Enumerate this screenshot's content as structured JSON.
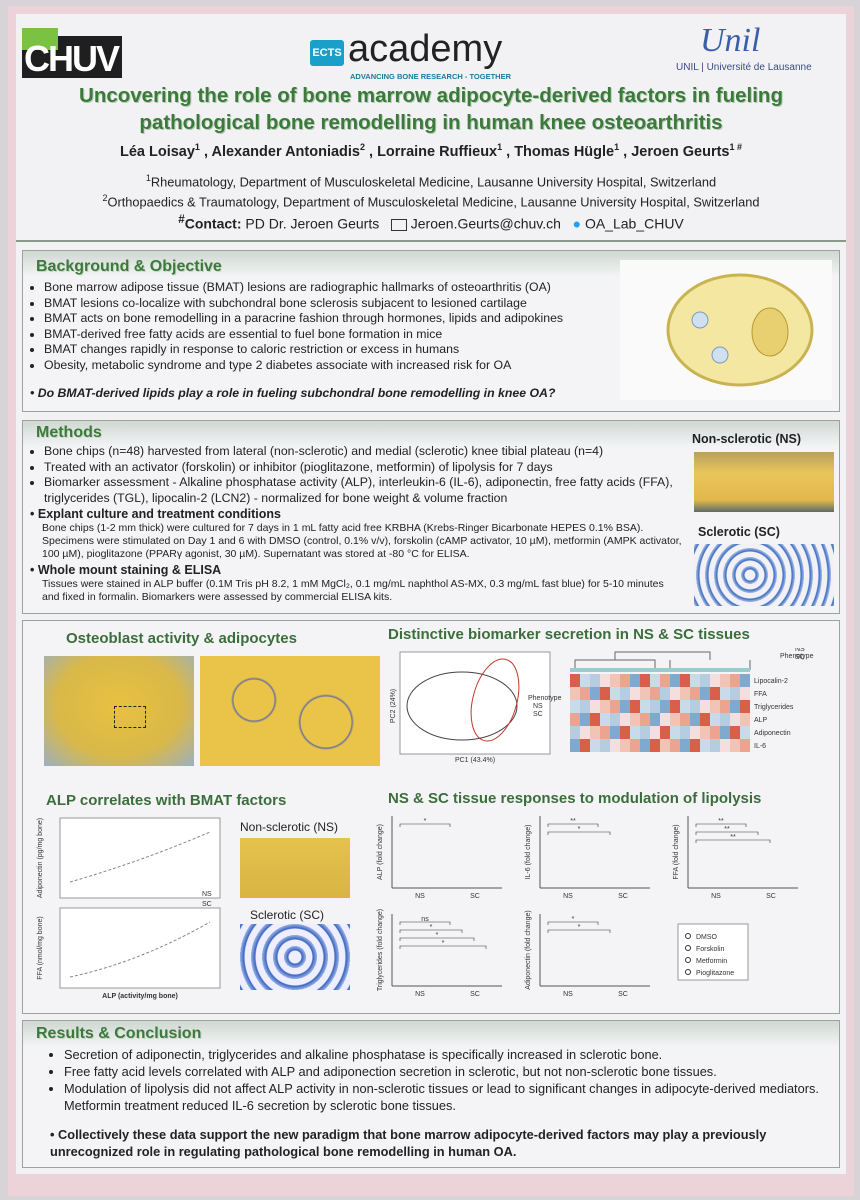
{
  "header": {
    "logo_left": "CHUV",
    "logo_center_badge": "ECTS",
    "logo_center": "academy",
    "logo_center_tagline": "ADVANCING BONE RESEARCH - TOGETHER",
    "logo_right": "Unil",
    "logo_right_caption": "UNIL | Université de Lausanne",
    "title_lines": [
      "Uncovering the role of bone marrow adipocyte-derived factors in fueling",
      "pathological bone remodelling in human knee osteoarthritis"
    ],
    "authors": [
      {
        "name": "Léa Loisay",
        "affiliation": "1"
      },
      {
        "name": "Alexander Antoniadis",
        "affiliation": "2"
      },
      {
        "name": "Lorraine Ruffieux",
        "affiliation": "1"
      },
      {
        "name": "Thomas Hügle",
        "affiliation": "1"
      },
      {
        "name": "Jeroen Geurts",
        "affiliation": "1 #"
      }
    ],
    "affiliations": [
      {
        "number": "1",
        "text": "Rheumatology, Department of Musculoskeletal Medicine, Lausanne University Hospital, Switzerland"
      },
      {
        "number": "2",
        "text": "Orthopaedics & Traumatology, Department of Musculoskeletal Medicine, Lausanne University Hospital, Switzerland"
      }
    ],
    "contact": {
      "marker": "#",
      "label": "Contact:",
      "name": "PD Dr. Jeroen Geurts",
      "email": "Jeroen.Geurts@chuv.ch",
      "twitter": "OA_Lab_CHUV"
    }
  },
  "background": {
    "heading": "Background & Objective",
    "bullets": [
      "Bone marrow adipose tissue (BMAT) lesions are radiographic hallmarks of osteoarthritis (OA)",
      "BMAT lesions co-localize with subchondral bone sclerosis subjacent to lesioned cartilage",
      "BMAT acts on bone remodelling in a paracrine fashion through hormones, lipids and adipokines",
      "BMAT-derived free fatty acids are essential to fuel bone formation in mice",
      "BMAT changes rapidly in response to caloric restriction or excess in humans",
      "Obesity, metabolic syndrome and type 2 diabetes associate with increased risk for OA"
    ],
    "question": "Do BMAT-derived lipids play a role in fueling subchondral bone remodelling in knee OA?"
  },
  "methods": {
    "heading": "Methods",
    "bullets": [
      "Bone chips (n=48) harvested from lateral (non-sclerotic) and medial (sclerotic) knee tibial plateau (n=4)",
      "Treated with an activator (forskolin) or inhibitor (pioglitazone, metformin) of lipolysis for 7 days",
      "Biomarker assessment - Alkaline phosphatase activity (ALP), interleukin-6 (IL-6), adiponectin, free fatty acids (FFA), triglycerides (TGL), lipocalin-2 (LCN2) - normalized for bone weight & volume fraction"
    ],
    "subsections": [
      {
        "heading": "Explant culture and treatment conditions",
        "text": "Bone chips (1-2 mm thick) were cultured for 7 days in 1 mL fatty acid free KRBHA (Krebs-Ringer Bicarbonate HEPES 0.1% BSA). Specimens were stimulated on Day 1 and 6 with DMSO (control, 0.1% v/v), forskolin (cAMP activator, 10 µM), metformin (AMPK activator, 100 µM), pioglitazone (PPARγ agonist, 30 µM). Supernatant was stored at -80 °C for ELISA."
      },
      {
        "heading": "Whole mount staining & ELISA",
        "text": "Tissues were stained in ALP buffer (0.1M Tris pH 8.2, 1 mM MgCl₂, 0.1 mg/mL naphthol AS-MX, 0.3 mg/mL fast blue) for 5-10 minutes and fixed in formalin. Biomarkers were assessed by commercial ELISA kits."
      }
    ],
    "image_labels": [
      "Non-sclerotic (NS)",
      "Sclerotic (SC)"
    ]
  },
  "figures": {
    "osteoblast_title": "Osteoblast activity & adipocytes",
    "biomarker_title": "Distinctive biomarker secretion in NS & SC tissues",
    "pca": {
      "x_label": "PC1 (43.4%)",
      "y_label": "PC2 (24%)",
      "legend_title": "Phenotype",
      "legend": [
        "NS",
        "SC"
      ]
    },
    "heatmap": {
      "rows": [
        "Lipocalin-2",
        "FFA",
        "Triglycerides",
        "ALP",
        "Adiponectin",
        "IL-6"
      ],
      "legend_title": "Phenotype",
      "legend": [
        "NS",
        "SC"
      ]
    },
    "alp_title": "ALP correlates with BMAT factors",
    "alp": {
      "y_labels": [
        "Adiponectin (pg/mg bone)",
        "FFA (nmol/mg bone)"
      ],
      "x_label": "ALP (activity/mg bone)",
      "legend": [
        "NS",
        "SC"
      ],
      "image_labels": [
        "Non-sclerotic (NS)",
        "Sclerotic (SC)"
      ]
    },
    "response_title": "NS & SC tissue responses to modulation of lipolysis",
    "response": {
      "panels": [
        {
          "y_label": "ALP (fold change)",
          "groups": [
            "NS",
            "SC"
          ],
          "significance": [
            "*"
          ]
        },
        {
          "y_label": "IL-6 (fold change)",
          "groups": [
            "NS",
            "SC"
          ],
          "significance": [
            "**",
            "*"
          ]
        },
        {
          "y_label": "FFA (fold change)",
          "groups": [
            "NS",
            "SC"
          ],
          "significance": [
            "**",
            "**",
            "**"
          ]
        },
        {
          "y_label": "Triglycerides (fold change)",
          "groups": [
            "NS",
            "SC"
          ],
          "significance": [
            "ns",
            "*",
            "*",
            "*"
          ]
        },
        {
          "y_label": "Adiponectin (fold change)",
          "groups": [
            "NS",
            "SC"
          ],
          "significance": [
            "*",
            "*"
          ]
        }
      ],
      "legend": [
        "DMSO",
        "Forskolin",
        "Metformin",
        "Pioglitazone"
      ]
    }
  },
  "results": {
    "heading": "Results & Conclusion",
    "bullets": [
      "Secretion of adiponectin, triglycerides and alkaline phosphatase is specifically increased in sclerotic bone.",
      "Free fatty acid levels correlated with ALP and adiponection secretion in sclerotic, but not non-sclerotic bone tissues.",
      "Modulation of lipolysis did not affect ALP activity in non-sclerotic tissues or lead to significant changes in adipocyte-derived mediators. Metformin treatment reduced IL-6 secretion by sclerotic bone tissues."
    ],
    "conclusion": "Collectively these data support the new paradigm that bone marrow adipocyte-derived factors may play a previously unrecognized role in regulating pathological bone remodelling in human OA."
  }
}
